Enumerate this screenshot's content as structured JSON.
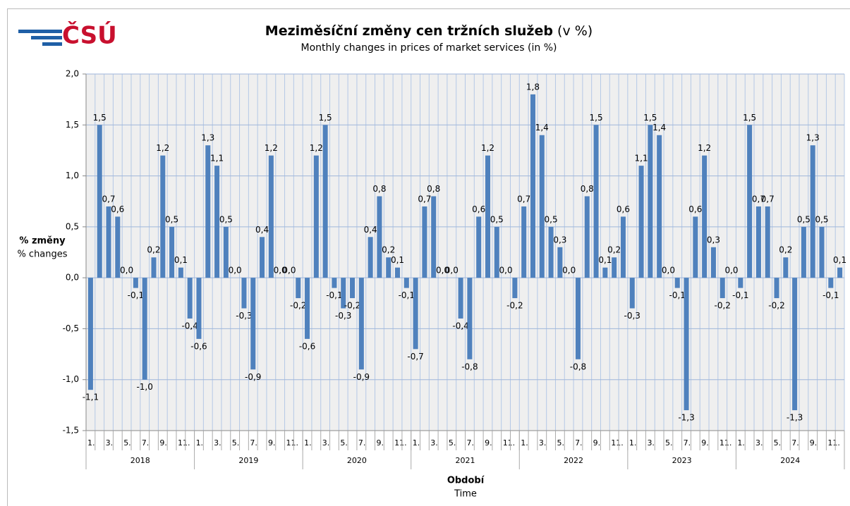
{
  "logo": "ČSÚ",
  "chart_data": {
    "type": "bar",
    "title": "Meziměsíční změny cen tržních služeb",
    "title_suffix": "(v %)",
    "subtitle": "Monthly changes in prices of market services (in %)",
    "ylabel": "% změny",
    "ylabel_en": "% changes",
    "xlabel": "Období",
    "xlabel_en": "Time",
    "years": [
      "2018",
      "2019",
      "2020",
      "2021",
      "2022",
      "2023",
      "2024"
    ],
    "categories": [
      "1.",
      null,
      "3.",
      null,
      "5.",
      null,
      "7.",
      null,
      "9.",
      null,
      "11.",
      null,
      "1.",
      null,
      "3.",
      null,
      "5.",
      null,
      "7.",
      null,
      "9.",
      null,
      "11.",
      null,
      "1.",
      null,
      "3.",
      null,
      "5.",
      null,
      "7.",
      null,
      "9.",
      null,
      "11.",
      null,
      "1.",
      null,
      "3.",
      null,
      "5.",
      null,
      "7.",
      null,
      "9.",
      null,
      "11.",
      null,
      "1.",
      null,
      "3.",
      null,
      "5.",
      null,
      "7.",
      null,
      "9.",
      null,
      "11.",
      null,
      "1.",
      null,
      "3.",
      null,
      "5.",
      null,
      "7.",
      null,
      "9.",
      null,
      "11.",
      null,
      "1.",
      null,
      "3.",
      null,
      "5.",
      null,
      "7.",
      null,
      "9.",
      null,
      "11.",
      null
    ],
    "values": [
      -1.1,
      1.5,
      0.7,
      0.6,
      0,
      -0.1,
      -1.0,
      0.2,
      1.2,
      0.5,
      0.1,
      -0.4,
      -0.6,
      1.3,
      1.1,
      0.5,
      0,
      -0.3,
      -0.9,
      0.4,
      1.2,
      0,
      0,
      -0.2,
      -0.6,
      1.2,
      1.5,
      -0.1,
      -0.3,
      -0.2,
      -0.9,
      0.4,
      0.8,
      0.2,
      0.1,
      -0.1,
      -0.7,
      0.7,
      0.8,
      0,
      0,
      -0.4,
      -0.8,
      0.6,
      1.2,
      0.5,
      0,
      -0.2,
      0.7,
      1.8,
      1.4,
      0.5,
      0.3,
      0,
      -0.8,
      0.8,
      1.5,
      0.1,
      0.2,
      0.6,
      -0.3,
      1.1,
      1.5,
      1.4,
      0,
      -0.1,
      -1.3,
      0.6,
      1.2,
      0.3,
      -0.2,
      0,
      -0.1,
      1.5,
      0.7,
      0.7,
      -0.2,
      0.2,
      -1.3,
      0.5,
      1.3,
      0.5,
      -0.1,
      0.1
    ],
    "value_labels": [
      "-1,1",
      "1,5",
      "0,7",
      "0,6",
      "0,0",
      "-0,1",
      "-1,0",
      "0,2",
      "1,2",
      "0,5",
      "0,1",
      "-0,4",
      "-0,6",
      "1,3",
      "1,1",
      "0,5",
      "0,0",
      "-0,3",
      "-0,9",
      "0,4",
      "1,2",
      "0,0",
      "0,0",
      "-0,2",
      "-0,6",
      "1,2",
      "1,5",
      "-0,1",
      "-0,3",
      "-0,2",
      "-0,9",
      "0,4",
      "0,8",
      "0,2",
      "0,1",
      "-0,1",
      "-0,7",
      "0,7",
      "0,8",
      "0,0",
      "0,0",
      "-0,4",
      "-0,8",
      "0,6",
      "1,2",
      "0,5",
      "0,0",
      "-0,2",
      "0,7",
      "1,8",
      "1,4",
      "0,5",
      "0,3",
      "0,0",
      "-0,8",
      "0,8",
      "1,5",
      "0,1",
      "0,2",
      "0,6",
      "-0,3",
      "1,1",
      "1,5",
      "1,4",
      "0,0",
      "-0,1",
      "-1,3",
      "0,6",
      "1,2",
      "0,3",
      "-0,2",
      "0,0",
      "-0,1",
      "1,5",
      "0,7",
      "0,7",
      "-0,2",
      "0,2",
      "-1,3",
      "0,5",
      "1,3",
      "0,5",
      "-0,1",
      "0,1"
    ],
    "color": "#4f81bd",
    "ylim": [
      -1.5,
      2.0
    ],
    "yticks": [
      {
        "value": -1.5,
        "label": "-1,5"
      },
      {
        "value": -1.0,
        "label": "-1,0"
      },
      {
        "value": -0.5,
        "label": "-0,5"
      },
      {
        "value": 0,
        "label": "0,0"
      },
      {
        "value": 0.5,
        "label": "0,5"
      },
      {
        "value": 1.0,
        "label": "1,0"
      },
      {
        "value": 1.5,
        "label": "1,5"
      },
      {
        "value": 2.0,
        "label": "2,0"
      }
    ],
    "grid": true
  }
}
